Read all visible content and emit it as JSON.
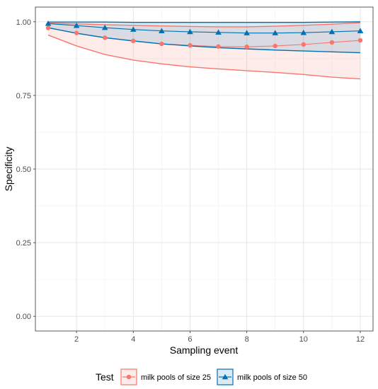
{
  "chart_data": {
    "type": "line",
    "xlabel": "Sampling event",
    "ylabel": "Specificity",
    "xlim": [
      0.55,
      12.45
    ],
    "ylim": [
      -0.05,
      1.05
    ],
    "x_ticks": [
      2,
      4,
      6,
      8,
      10,
      12
    ],
    "y_ticks": [
      0.0,
      0.25,
      0.5,
      0.75,
      1.0
    ],
    "y_tick_labels": [
      "0.00",
      "0.25",
      "0.50",
      "0.75",
      "1.00"
    ],
    "grid": true,
    "legend": {
      "title": "Test",
      "placement": "bottom"
    },
    "series": [
      {
        "name": "milk pools of size 25",
        "color": "#F8766D",
        "marker": "circle",
        "x": [
          1,
          2,
          3,
          4,
          5,
          6,
          7,
          8,
          9,
          10,
          11,
          12
        ],
        "values": [
          0.979,
          0.962,
          0.946,
          0.935,
          0.925,
          0.92,
          0.916,
          0.915,
          0.918,
          0.923,
          0.93,
          0.937
        ],
        "lower": [
          0.955,
          0.918,
          0.889,
          0.87,
          0.857,
          0.847,
          0.84,
          0.834,
          0.828,
          0.821,
          0.812,
          0.806
        ],
        "upper": [
          0.995,
          0.993,
          0.99,
          0.988,
          0.986,
          0.984,
          0.983,
          0.983,
          0.985,
          0.988,
          0.992,
          0.997
        ]
      },
      {
        "name": "milk pools of size 50",
        "color": "#0072B2",
        "marker": "triangle",
        "x": [
          1,
          2,
          3,
          4,
          5,
          6,
          7,
          8,
          9,
          10,
          11,
          12
        ],
        "values": [
          0.994,
          0.987,
          0.98,
          0.974,
          0.969,
          0.966,
          0.964,
          0.962,
          0.962,
          0.963,
          0.966,
          0.969
        ],
        "lower": [
          0.98,
          0.961,
          0.946,
          0.935,
          0.925,
          0.918,
          0.912,
          0.908,
          0.904,
          0.901,
          0.898,
          0.895
        ],
        "upper": [
          0.999,
          0.999,
          0.999,
          0.998,
          0.998,
          0.998,
          0.998,
          0.998,
          0.998,
          0.998,
          0.999,
          1.0
        ]
      }
    ]
  }
}
